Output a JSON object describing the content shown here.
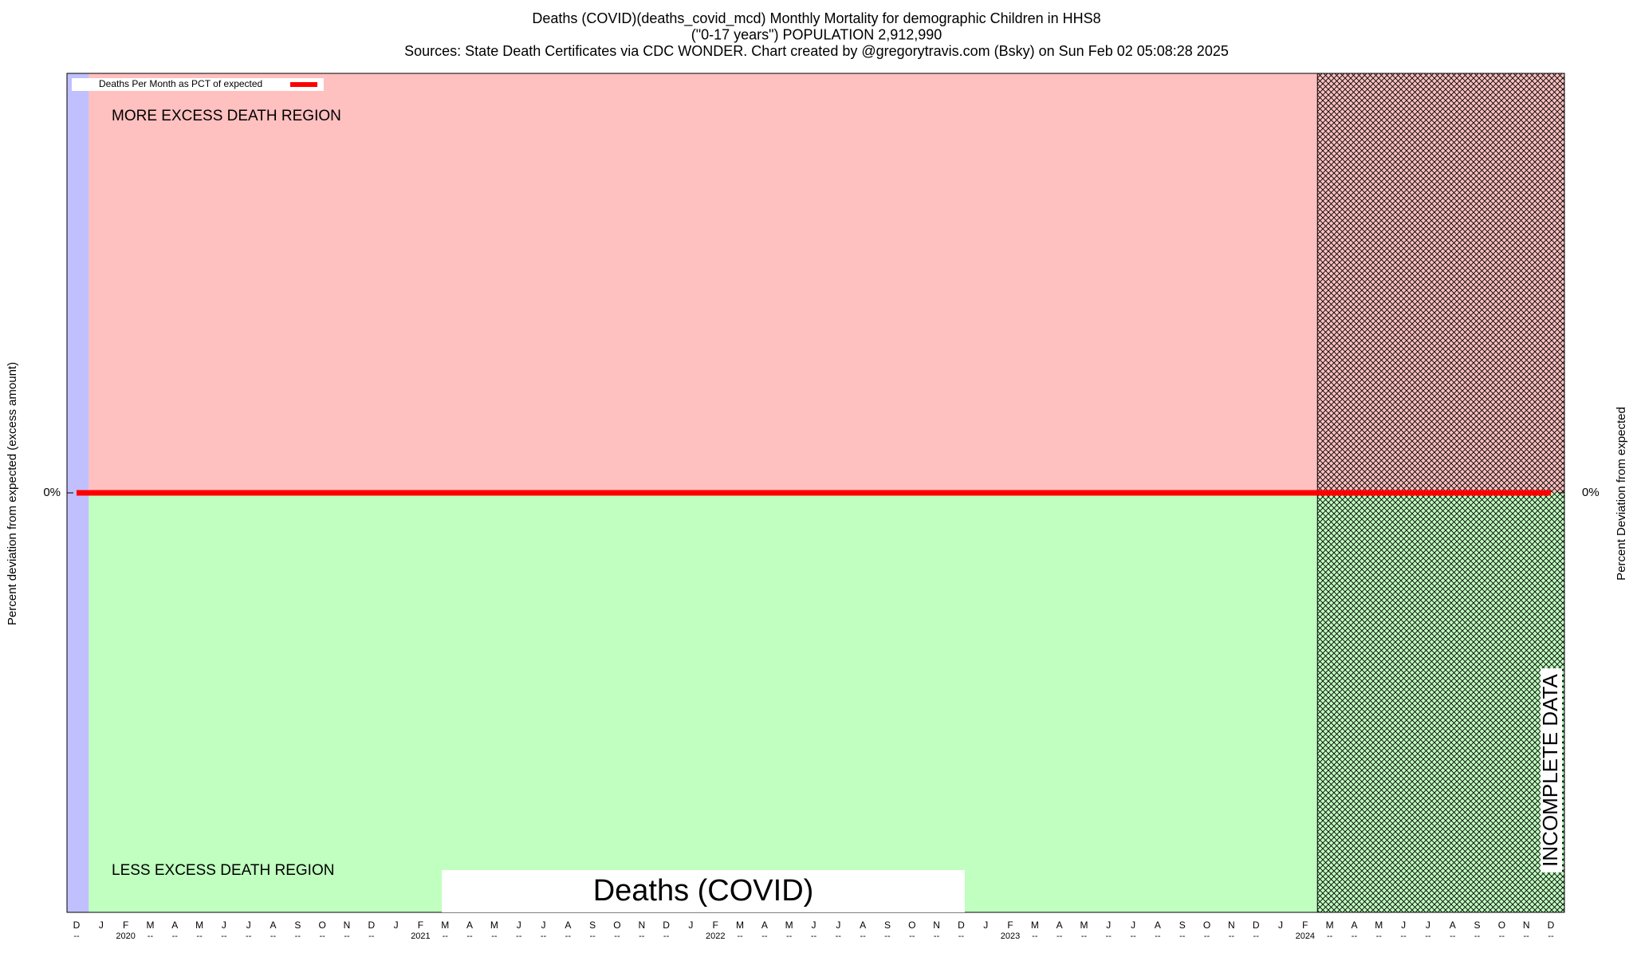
{
  "chart_data": {
    "type": "line",
    "title": [
      "Deaths (COVID)(deaths_covid_mcd) Monthly Mortality for demographic Children in HHS8",
      "(\"0-17 years\") POPULATION 2,912,990",
      "Sources: State Death Certificates via CDC WONDER.               Chart created by @gregorytravis.com (Bsky) on Sun Feb 02 05:08:28 2025"
    ],
    "ylabel": "Percent deviation from expected (excess amount)",
    "y2label": "Percent Deviation from expected",
    "categories": [
      "D",
      "J",
      "F",
      "M",
      "A",
      "M",
      "J",
      "J",
      "A",
      "S",
      "O",
      "N",
      "D",
      "J",
      "F",
      "M",
      "A",
      "M",
      "J",
      "J",
      "A",
      "S",
      "O",
      "N",
      "D",
      "J",
      "F",
      "M",
      "A",
      "M",
      "J",
      "J",
      "A",
      "S",
      "O",
      "N",
      "D",
      "J",
      "F",
      "M",
      "A",
      "M",
      "J",
      "J",
      "A",
      "S",
      "O",
      "N",
      "D",
      "J",
      "F",
      "M",
      "A",
      "M",
      "J",
      "J",
      "A",
      "S",
      "O",
      "N",
      "D"
    ],
    "x_sublabels": [
      "--",
      null,
      "2020",
      "--",
      "--",
      "--",
      "--",
      "--",
      "--",
      "--",
      "--",
      "--",
      "--",
      null,
      "2021",
      "--",
      "--",
      "--",
      "--",
      "--",
      "--",
      "--",
      "--",
      "--",
      "--",
      null,
      "2022",
      "--",
      "--",
      "--",
      "--",
      "--",
      "--",
      "--",
      "--",
      "--",
      "--",
      null,
      "2023",
      "--",
      "--",
      "--",
      "--",
      "--",
      "--",
      "--",
      "--",
      "--",
      "--",
      null,
      "2024",
      "--",
      "--",
      "--",
      "--",
      "--",
      "--",
      "--",
      "--",
      "--",
      "--"
    ],
    "series": [
      {
        "name": "Deaths Per Month as PCT of expected",
        "color": "#ff0000",
        "values": [
          0,
          0,
          0,
          0,
          0,
          0,
          0,
          0,
          0,
          0,
          0,
          0,
          0,
          0,
          0,
          0,
          0,
          0,
          0,
          0,
          0,
          0,
          0,
          0,
          0,
          0,
          0,
          0,
          0,
          0,
          0,
          0,
          0,
          0,
          0,
          0,
          0,
          0,
          0,
          0,
          0,
          0,
          0,
          0,
          0,
          0,
          0,
          0,
          0,
          0,
          0,
          0,
          0,
          0,
          0,
          0,
          0,
          0,
          0,
          0,
          0
        ]
      }
    ],
    "ylim": [
      -100,
      100
    ],
    "yticks": [
      {
        "value": 0,
        "label": "0%"
      }
    ],
    "y2lim": [
      -100,
      100
    ],
    "y2ticks": [
      {
        "value": 0,
        "label": "0%"
      }
    ],
    "annotations": {
      "above": "MORE EXCESS DEATH REGION",
      "below": "LESS EXCESS DEATH REGION",
      "incomplete": "INCOMPLETE DATA",
      "metric": "Deaths (COVID)"
    },
    "colors": {
      "above": "#ffc0c0",
      "below": "#c0ffc0",
      "baseline_month": "#c0c0ff"
    },
    "legend": "top-left"
  }
}
